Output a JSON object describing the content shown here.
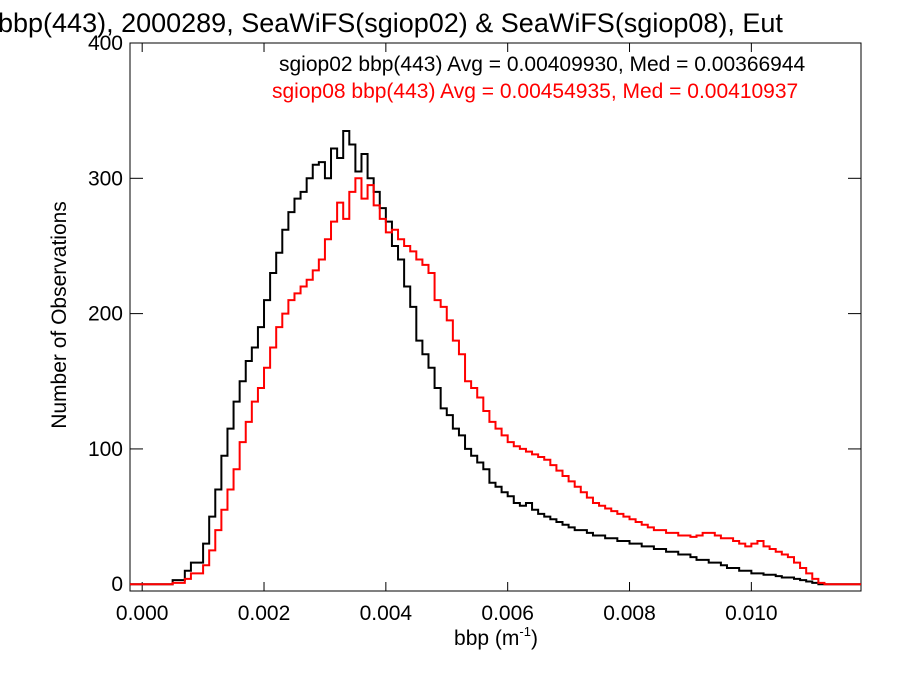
{
  "chart_data": {
    "type": "histogram-step",
    "title": "bbp(443), 2000289, SeaWiFS(sgiop02) & SeaWiFS(sgiop08), Eut",
    "xlabel_main": "bbp (m",
    "xlabel_sup": "-1",
    "xlabel_close": ")",
    "ylabel": "Number of Observations",
    "xlim": [
      -0.0002,
      0.0118
    ],
    "ylim": [
      -5,
      400
    ],
    "xticks": [
      0.0,
      0.002,
      0.004,
      0.006,
      0.008,
      0.01
    ],
    "xtick_labels": [
      "0.000",
      "0.002",
      "0.004",
      "0.006",
      "0.008",
      "0.010"
    ],
    "yticks": [
      0,
      100,
      200,
      300,
      400
    ],
    "ytick_labels": [
      "0",
      "100",
      "200",
      "300",
      "400"
    ],
    "legend_placement": "top-right",
    "series": [
      {
        "name": "sgiop02",
        "color": "#000000",
        "legend": "sgiop02 bbp(443) Avg = 0.00409930, Med = 0.00366944",
        "x": [
          -0.0002,
          0.0,
          0.0003,
          0.0005,
          0.0007,
          0.0008,
          0.001,
          0.0011,
          0.0012,
          0.0013,
          0.0014,
          0.0015,
          0.0016,
          0.0017,
          0.0018,
          0.0019,
          0.002,
          0.0021,
          0.0022,
          0.0023,
          0.0024,
          0.0025,
          0.0026,
          0.0027,
          0.0028,
          0.0029,
          0.003,
          0.0031,
          0.0032,
          0.0033,
          0.0034,
          0.0035,
          0.0036,
          0.0037,
          0.0038,
          0.0039,
          0.004,
          0.0041,
          0.0042,
          0.0043,
          0.0044,
          0.0045,
          0.0046,
          0.0047,
          0.0048,
          0.0049,
          0.005,
          0.0051,
          0.0052,
          0.0053,
          0.0054,
          0.0055,
          0.0056,
          0.0057,
          0.0058,
          0.0059,
          0.006,
          0.0061,
          0.0062,
          0.0063,
          0.0064,
          0.0065,
          0.0066,
          0.0067,
          0.0068,
          0.0069,
          0.007,
          0.0071,
          0.0072,
          0.0073,
          0.0074,
          0.0075,
          0.0076,
          0.0077,
          0.0078,
          0.0079,
          0.008,
          0.0081,
          0.0082,
          0.0083,
          0.0084,
          0.0085,
          0.0086,
          0.0087,
          0.0088,
          0.0089,
          0.009,
          0.0091,
          0.0092,
          0.0093,
          0.0094,
          0.0095,
          0.0096,
          0.0097,
          0.0098,
          0.0099,
          0.01,
          0.0101,
          0.0102,
          0.0103,
          0.0104,
          0.0105,
          0.0106,
          0.0107,
          0.0108,
          0.0109,
          0.011,
          0.0111,
          0.0112,
          0.0114,
          0.0118
        ],
        "y": [
          0,
          0,
          0,
          3,
          10,
          16,
          30,
          50,
          70,
          95,
          115,
          135,
          150,
          165,
          175,
          190,
          210,
          230,
          245,
          262,
          275,
          285,
          290,
          300,
          310,
          312,
          300,
          322,
          315,
          335,
          325,
          305,
          318,
          300,
          290,
          278,
          268,
          250,
          240,
          220,
          205,
          180,
          170,
          160,
          145,
          130,
          125,
          115,
          110,
          100,
          95,
          90,
          85,
          75,
          72,
          68,
          65,
          60,
          58,
          60,
          55,
          52,
          50,
          48,
          46,
          44,
          42,
          40,
          40,
          38,
          36,
          36,
          34,
          34,
          32,
          32,
          30,
          30,
          28,
          28,
          26,
          26,
          24,
          24,
          22,
          22,
          20,
          18,
          18,
          16,
          16,
          14,
          12,
          12,
          10,
          10,
          8,
          8,
          7,
          7,
          6,
          5,
          5,
          4,
          3,
          2,
          1,
          0,
          0,
          0,
          0
        ]
      },
      {
        "name": "sgiop08",
        "color": "#ff0000",
        "legend": "sgiop08 bbp(443) Avg = 0.00454935, Med = 0.00410937",
        "x": [
          -0.0002,
          0.0,
          0.0003,
          0.0005,
          0.0007,
          0.0008,
          0.001,
          0.0011,
          0.0012,
          0.0013,
          0.0014,
          0.0015,
          0.0016,
          0.0017,
          0.0018,
          0.0019,
          0.002,
          0.0021,
          0.0022,
          0.0023,
          0.0024,
          0.0025,
          0.0026,
          0.0027,
          0.0028,
          0.0029,
          0.003,
          0.0031,
          0.0032,
          0.0033,
          0.0034,
          0.0035,
          0.0036,
          0.0037,
          0.0038,
          0.0039,
          0.004,
          0.0041,
          0.0042,
          0.0043,
          0.0044,
          0.0045,
          0.0046,
          0.0047,
          0.0048,
          0.0049,
          0.005,
          0.0051,
          0.0052,
          0.0053,
          0.0054,
          0.0055,
          0.0056,
          0.0057,
          0.0058,
          0.0059,
          0.006,
          0.0061,
          0.0062,
          0.0063,
          0.0064,
          0.0065,
          0.0066,
          0.0067,
          0.0068,
          0.0069,
          0.007,
          0.0071,
          0.0072,
          0.0073,
          0.0074,
          0.0075,
          0.0076,
          0.0077,
          0.0078,
          0.0079,
          0.008,
          0.0081,
          0.0082,
          0.0083,
          0.0084,
          0.0085,
          0.0086,
          0.0087,
          0.0088,
          0.0089,
          0.009,
          0.0091,
          0.0092,
          0.0093,
          0.0094,
          0.0095,
          0.0096,
          0.0097,
          0.0098,
          0.0099,
          0.01,
          0.0101,
          0.0102,
          0.0103,
          0.0104,
          0.0105,
          0.0106,
          0.0107,
          0.0108,
          0.0109,
          0.011,
          0.0111,
          0.0112,
          0.0114,
          0.0118
        ],
        "y": [
          0,
          0,
          0,
          1,
          4,
          8,
          14,
          25,
          40,
          55,
          70,
          85,
          105,
          120,
          135,
          145,
          160,
          175,
          190,
          200,
          210,
          215,
          220,
          225,
          232,
          240,
          255,
          268,
          282,
          270,
          290,
          300,
          285,
          295,
          280,
          270,
          260,
          262,
          255,
          250,
          246,
          240,
          236,
          230,
          210,
          205,
          195,
          180,
          170,
          150,
          145,
          138,
          128,
          120,
          115,
          110,
          105,
          102,
          100,
          98,
          96,
          94,
          92,
          88,
          84,
          80,
          76,
          72,
          68,
          64,
          60,
          58,
          56,
          54,
          52,
          50,
          48,
          46,
          44,
          42,
          40,
          40,
          38,
          38,
          36,
          36,
          35,
          36,
          38,
          38,
          36,
          34,
          34,
          32,
          30,
          28,
          30,
          32,
          28,
          26,
          24,
          22,
          20,
          16,
          12,
          8,
          4,
          1,
          0,
          0,
          0
        ]
      }
    ]
  }
}
